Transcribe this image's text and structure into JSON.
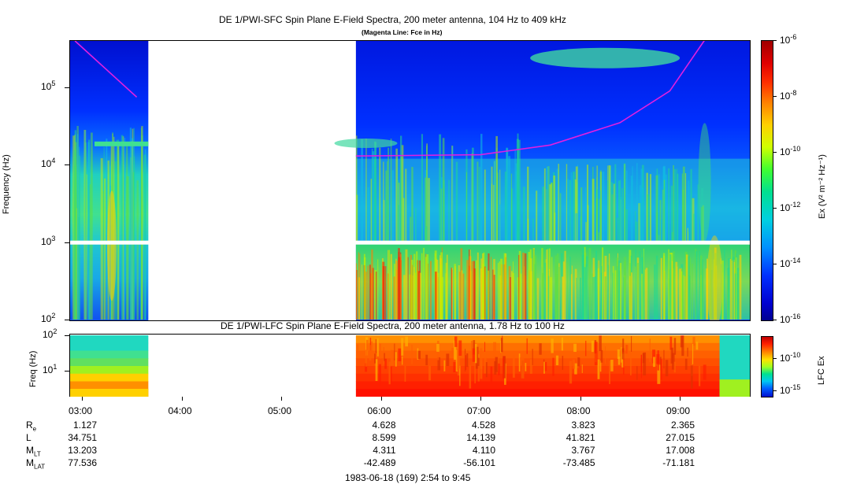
{
  "chart_data": [
    {
      "type": "heatmap",
      "title": "DE 1/PWI-SFC  Spin Plane E-Field Spectra, 200 meter antenna, 104 Hz to 409 kHz",
      "subtitle": "(Magenta Line: Fce in Hz)",
      "ylabel": "Frequency (Hz)",
      "yscale": "log",
      "ylim": [
        100,
        409000
      ],
      "y_ticks": [
        {
          "base": "10",
          "exp": "2"
        },
        {
          "base": "10",
          "exp": "3"
        },
        {
          "base": "10",
          "exp": "4"
        },
        {
          "base": "10",
          "exp": "5"
        }
      ],
      "x_ticks": [
        "03:00",
        "04:00",
        "05:00",
        "06:00",
        "07:00",
        "08:00",
        "09:00"
      ],
      "data_gap": [
        "03:40",
        "05:45"
      ],
      "colorbar": {
        "label": "Ex (V² m⁻² Hz⁻¹)",
        "scale": "log",
        "range": [
          1e-16,
          1e-06
        ],
        "ticks": [
          {
            "base": "10",
            "exp": "-6"
          },
          {
            "base": "10",
            "exp": "-8"
          },
          {
            "base": "10",
            "exp": "-10"
          },
          {
            "base": "10",
            "exp": "-12"
          },
          {
            "base": "10",
            "exp": "-14"
          },
          {
            "base": "10",
            "exp": "-16"
          }
        ]
      },
      "overlay_line": {
        "color": "#e020e0",
        "segments": [
          [
            [
              0.03,
              400000
            ],
            [
              0.65,
              75000
            ]
          ],
          [
            [
              2.85,
              13000
            ],
            [
              4.1,
              13500
            ],
            [
              4.8,
              18000
            ],
            [
              5.5,
              35000
            ],
            [
              6.0,
              90000
            ],
            [
              6.35,
              409000
            ]
          ]
        ]
      }
    },
    {
      "type": "heatmap",
      "title": "DE 1/PWI-LFC  Spin Plane E-Field Spectra, 200 meter antenna, 1.78 Hz to 100 Hz",
      "ylabel": "Freq (Hz)",
      "yscale": "log",
      "ylim": [
        1.78,
        100
      ],
      "y_ticks": [
        {
          "base": "10",
          "exp": "2"
        },
        {
          "base": "10",
          "exp": "1"
        }
      ],
      "colorbar": {
        "label": "LFC Ex",
        "ticks": [
          {
            "base": "10",
            "exp": "-10"
          },
          {
            "base": "10",
            "exp": "-15"
          }
        ]
      }
    }
  ],
  "ephemeris": {
    "labels": [
      {
        "main": "R",
        "sub": "e"
      },
      {
        "main": "L",
        "sub": ""
      },
      {
        "main": "M",
        "sub": "LT"
      },
      {
        "main": "M",
        "sub": "LAT"
      }
    ],
    "columns": [
      {
        "time": "03:00",
        "values": [
          "1.127",
          "34.751",
          "13.203",
          "77.536"
        ]
      },
      {
        "time": "04:00",
        "values": [
          "",
          "",
          "",
          ""
        ]
      },
      {
        "time": "05:00",
        "values": [
          "",
          "",
          "",
          ""
        ]
      },
      {
        "time": "06:00",
        "values": [
          "4.628",
          "8.599",
          "4.311",
          "-42.489"
        ]
      },
      {
        "time": "07:00",
        "values": [
          "4.528",
          "14.139",
          "4.110",
          "-56.101"
        ]
      },
      {
        "time": "08:00",
        "values": [
          "3.823",
          "41.821",
          "3.767",
          "-73.485"
        ]
      },
      {
        "time": "09:00",
        "values": [
          "2.365",
          "27.015",
          "17.008",
          "-71.181"
        ]
      }
    ]
  },
  "footer": "1983-06-18 (169) 2:54 to 9:45"
}
